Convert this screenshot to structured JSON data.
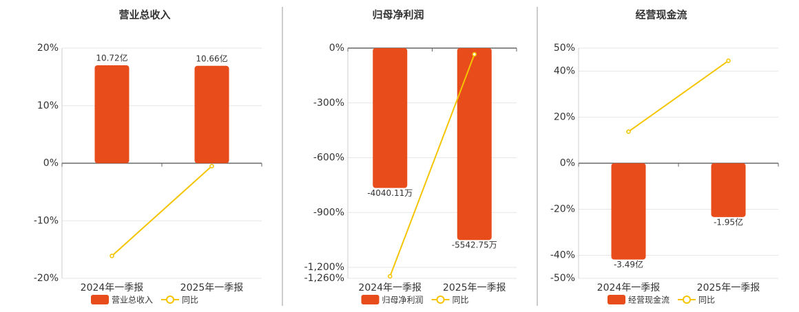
{
  "chart_data": [
    {
      "type": "bar",
      "title": "营业总收入",
      "categories": [
        "2024年一季报",
        "2025年一季报"
      ],
      "series": [
        {
          "name": "营业总收入",
          "type": "bar",
          "color": "#e84c1a",
          "axis": "y2",
          "values": [
            10.72,
            10.66
          ],
          "value_labels": [
            "10.72亿",
            "10.66亿"
          ]
        },
        {
          "name": "同比",
          "type": "line",
          "color": "#f5c400",
          "values": [
            -16.1,
            -0.5
          ]
        }
      ],
      "ylim": [
        -20,
        20
      ],
      "yticks": [
        {
          "value": 20,
          "label": "20%"
        },
        {
          "value": 10,
          "label": "10%"
        },
        {
          "value": 0,
          "label": "0%"
        },
        {
          "value": -10,
          "label": "-10%"
        },
        {
          "value": -20,
          "label": "-20%"
        }
      ],
      "y2lim": [
        -12.6,
        12.6
      ],
      "grid": true
    },
    {
      "type": "bar",
      "title": "归母净利润",
      "categories": [
        "2024年一季报",
        "2025年一季报"
      ],
      "series": [
        {
          "name": "归母净利润",
          "type": "bar",
          "color": "#e84c1a",
          "axis": "y2",
          "values": [
            -4040.11,
            -5542.75
          ],
          "value_labels": [
            "-4040.11万",
            "-5542.75万"
          ]
        },
        {
          "name": "同比",
          "type": "line",
          "color": "#f5c400",
          "values": [
            -1249,
            -34
          ]
        }
      ],
      "ylim": [
        -1260,
        0
      ],
      "yticks": [
        {
          "value": 0,
          "label": "0%"
        },
        {
          "value": -300,
          "label": "-300%"
        },
        {
          "value": -600,
          "label": "-600%"
        },
        {
          "value": -900,
          "label": "-900%"
        },
        {
          "value": -1200,
          "label": "-1,200%"
        },
        {
          "value": -1260,
          "label": "-1,260%"
        }
      ],
      "y2lim": [
        -6650,
        0
      ],
      "grid": true
    },
    {
      "type": "bar",
      "title": "经营现金流",
      "categories": [
        "2024年一季报",
        "2025年一季报"
      ],
      "series": [
        {
          "name": "经营现金流",
          "type": "bar",
          "color": "#e84c1a",
          "axis": "y2",
          "values": [
            -3.49,
            -1.95
          ],
          "value_labels": [
            "-3.49亿",
            "-1.95亿"
          ]
        },
        {
          "name": "同比",
          "type": "line",
          "color": "#f5c400",
          "values": [
            13.7,
            44.5
          ]
        }
      ],
      "ylim": [
        -50,
        50
      ],
      "yticks": [
        {
          "value": 50,
          "label": "50%"
        },
        {
          "value": 40,
          "label": "40%"
        },
        {
          "value": 20,
          "label": "20%"
        },
        {
          "value": 0,
          "label": "0%"
        },
        {
          "value": -20,
          "label": "-20%"
        },
        {
          "value": -40,
          "label": "-40%"
        },
        {
          "value": -50,
          "label": "-50%"
        }
      ],
      "y2lim": [
        -4.17,
        4.17
      ],
      "grid": true
    }
  ]
}
